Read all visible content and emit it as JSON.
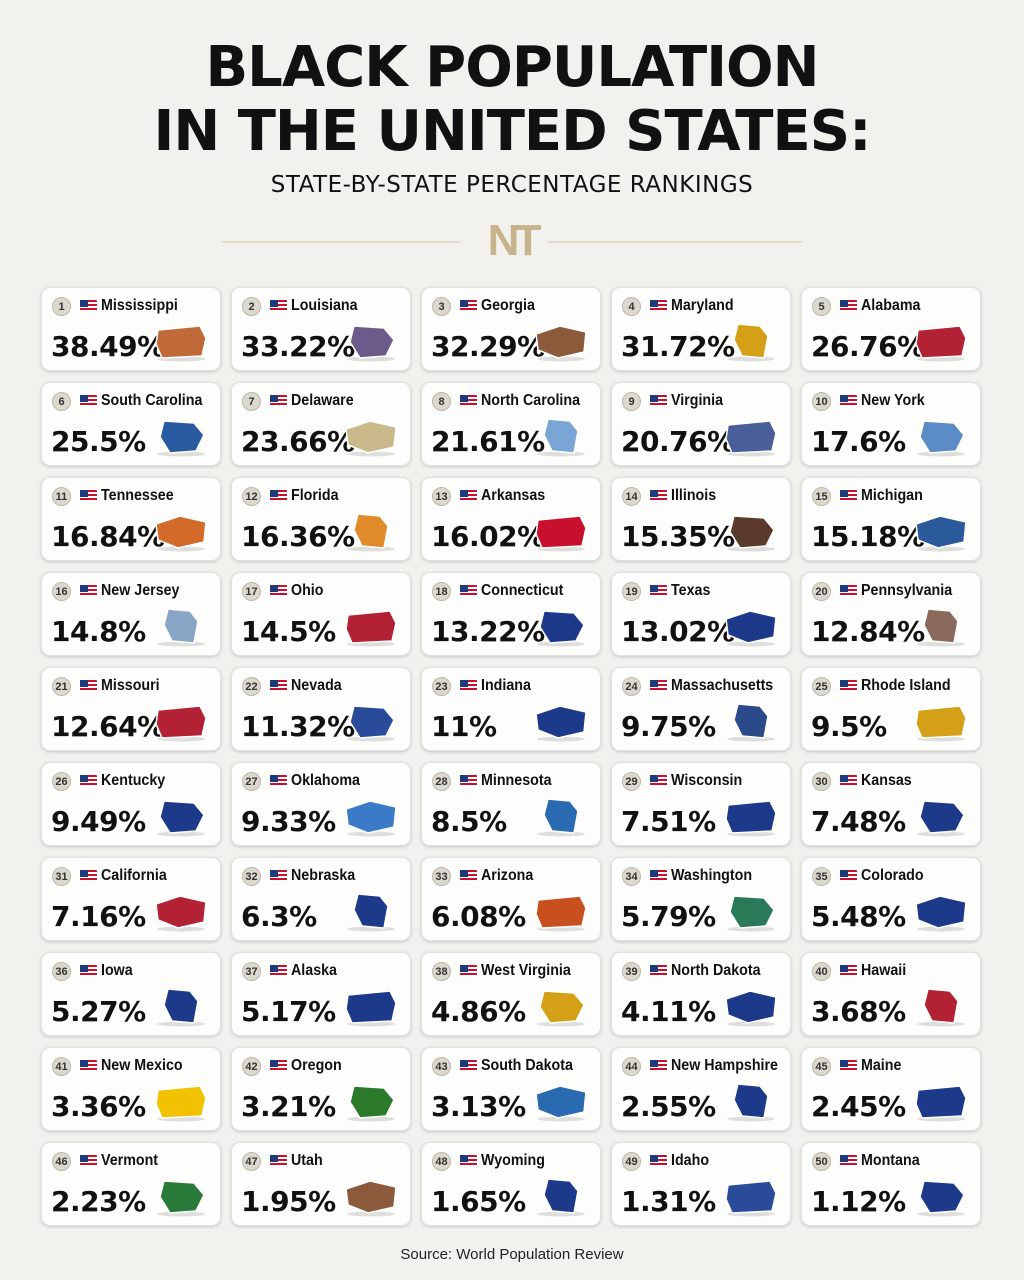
{
  "title_line1": "BLACK POPULATION",
  "title_line2": "IN THE UNITED STATES:",
  "subtitle": "STATE-BY-STATE PERCENTAGE RANKINGS",
  "logo": "NT",
  "source": "Source: World Population Review",
  "chart_data": {
    "type": "table",
    "title": "BLACK POPULATION IN THE UNITED STATES:",
    "subtitle": "STATE-BY-STATE PERCENTAGE RANKINGS",
    "columns": [
      "rank",
      "state",
      "percent"
    ],
    "rows": [
      {
        "rank": "1",
        "state": "Mississippi",
        "pct": "38.49%",
        "color": "#c06a3a"
      },
      {
        "rank": "2",
        "state": "Louisiana",
        "pct": "33.22%",
        "color": "#6b5a8a"
      },
      {
        "rank": "3",
        "state": "Georgia",
        "pct": "32.29%",
        "color": "#8a5a3a"
      },
      {
        "rank": "4",
        "state": "Maryland",
        "pct": "31.72%",
        "color": "#d4a017"
      },
      {
        "rank": "5",
        "state": "Alabama",
        "pct": "26.76%",
        "color": "#b22234"
      },
      {
        "rank": "6",
        "state": "South Carolina",
        "pct": "25.5%",
        "color": "#2a5aa0"
      },
      {
        "rank": "7",
        "state": "Delaware",
        "pct": "23.66%",
        "color": "#c9b98a"
      },
      {
        "rank": "8",
        "state": "North Carolina",
        "pct": "21.61%",
        "color": "#7aa6d6"
      },
      {
        "rank": "9",
        "state": "Virginia",
        "pct": "20.76%",
        "color": "#4a5f9a"
      },
      {
        "rank": "10",
        "state": "New York",
        "pct": "17.6%",
        "color": "#5b8cc6"
      },
      {
        "rank": "11",
        "state": "Tennessee",
        "pct": "16.84%",
        "color": "#d26a2a"
      },
      {
        "rank": "12",
        "state": "Florida",
        "pct": "16.36%",
        "color": "#e08a2a"
      },
      {
        "rank": "13",
        "state": "Arkansas",
        "pct": "16.02%",
        "color": "#c8102e"
      },
      {
        "rank": "14",
        "state": "Illinois",
        "pct": "15.35%",
        "color": "#5a3a2a"
      },
      {
        "rank": "15",
        "state": "Michigan",
        "pct": "15.18%",
        "color": "#2a5a9a"
      },
      {
        "rank": "16",
        "state": "New Jersey",
        "pct": "14.8%",
        "color": "#8aa6c6"
      },
      {
        "rank": "17",
        "state": "Ohio",
        "pct": "14.5%",
        "color": "#b22234"
      },
      {
        "rank": "18",
        "state": "Connecticut",
        "pct": "13.22%",
        "color": "#1d3a8a"
      },
      {
        "rank": "19",
        "state": "Texas",
        "pct": "13.02%",
        "color": "#1d3a8a"
      },
      {
        "rank": "20",
        "state": "Pennsylvania",
        "pct": "12.84%",
        "color": "#8a6a5a"
      },
      {
        "rank": "21",
        "state": "Missouri",
        "pct": "12.64%",
        "color": "#b22234"
      },
      {
        "rank": "22",
        "state": "Nevada",
        "pct": "11.32%",
        "color": "#2a4a9a"
      },
      {
        "rank": "23",
        "state": "Indiana",
        "pct": "11%",
        "color": "#1d3a8a"
      },
      {
        "rank": "24",
        "state": "Massachusetts",
        "pct": "9.75%",
        "color": "#2a4a8a"
      },
      {
        "rank": "25",
        "state": "Rhode Island",
        "pct": "9.5%",
        "color": "#d4a017"
      },
      {
        "rank": "26",
        "state": "Kentucky",
        "pct": "9.49%",
        "color": "#1d3a8a"
      },
      {
        "rank": "27",
        "state": "Oklahoma",
        "pct": "9.33%",
        "color": "#3a7ac6"
      },
      {
        "rank": "28",
        "state": "Minnesota",
        "pct": "8.5%",
        "color": "#2a6ab0"
      },
      {
        "rank": "29",
        "state": "Wisconsin",
        "pct": "7.51%",
        "color": "#1d3a8a"
      },
      {
        "rank": "30",
        "state": "Kansas",
        "pct": "7.48%",
        "color": "#1d3a8a"
      },
      {
        "rank": "31",
        "state": "California",
        "pct": "7.16%",
        "color": "#b22234"
      },
      {
        "rank": "32",
        "state": "Nebraska",
        "pct": "6.3%",
        "color": "#1d3a8a"
      },
      {
        "rank": "33",
        "state": "Arizona",
        "pct": "6.08%",
        "color": "#c8501e"
      },
      {
        "rank": "34",
        "state": "Washington",
        "pct": "5.79%",
        "color": "#2a7a5a"
      },
      {
        "rank": "35",
        "state": "Colorado",
        "pct": "5.48%",
        "color": "#1d3a8a"
      },
      {
        "rank": "36",
        "state": "Iowa",
        "pct": "5.27%",
        "color": "#1d3a8a"
      },
      {
        "rank": "37",
        "state": "Alaska",
        "pct": "5.17%",
        "color": "#1d3a8a"
      },
      {
        "rank": "38",
        "state": "West Virginia",
        "pct": "4.86%",
        "color": "#d4a017"
      },
      {
        "rank": "39",
        "state": "North Dakota",
        "pct": "4.11%",
        "color": "#1d3a8a"
      },
      {
        "rank": "40",
        "state": "Hawaii",
        "pct": "3.68%",
        "color": "#b22234"
      },
      {
        "rank": "41",
        "state": "New Mexico",
        "pct": "3.36%",
        "color": "#f2c200"
      },
      {
        "rank": "42",
        "state": "Oregon",
        "pct": "3.21%",
        "color": "#2a7a2a"
      },
      {
        "rank": "43",
        "state": "South Dakota",
        "pct": "3.13%",
        "color": "#2a6ab0"
      },
      {
        "rank": "44",
        "state": "New Hampshire",
        "pct": "2.55%",
        "color": "#1d3a8a"
      },
      {
        "rank": "45",
        "state": "Maine",
        "pct": "2.45%",
        "color": "#1d3a8a"
      },
      {
        "rank": "46",
        "state": "Vermont",
        "pct": "2.23%",
        "color": "#2a7a3a"
      },
      {
        "rank": "47",
        "state": "Utah",
        "pct": "1.95%",
        "color": "#8a5a3a"
      },
      {
        "rank": "48",
        "state": "Wyoming",
        "pct": "1.65%",
        "color": "#1d3a8a"
      },
      {
        "rank": "49",
        "state": "Idaho",
        "pct": "1.31%",
        "color": "#2a4a9a"
      },
      {
        "rank": "50",
        "state": "Montana",
        "pct": "1.12%",
        "color": "#1d3a8a"
      }
    ]
  }
}
